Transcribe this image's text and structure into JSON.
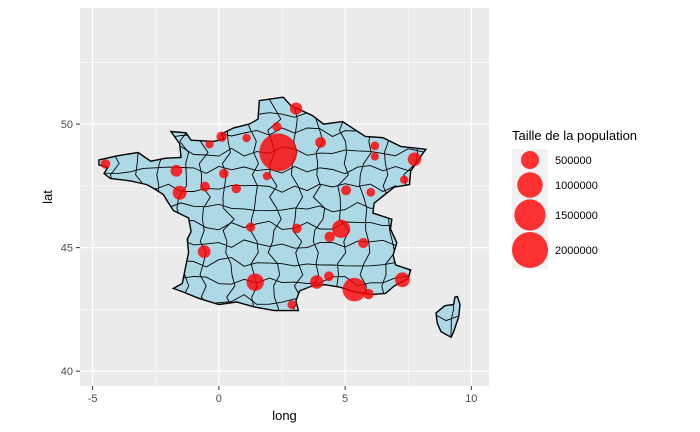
{
  "chart_data": {
    "type": "scatter",
    "xlabel": "long",
    "ylabel": "lat",
    "xlim": [
      -5.5,
      10.7
    ],
    "ylim": [
      39.4,
      54.7
    ],
    "x_ticks": [
      -5,
      0,
      5,
      10
    ],
    "y_ticks": [
      40,
      45,
      50
    ],
    "grid": true,
    "legend": {
      "title": "Taille de la population",
      "position": "right",
      "entries": [
        {
          "label": "500000",
          "value": 500000
        },
        {
          "label": "1000000",
          "value": 1000000
        },
        {
          "label": "1500000",
          "value": 1500000
        },
        {
          "label": "2000000",
          "value": 2000000
        }
      ]
    },
    "colors": {
      "panel": "#ebebeb",
      "grid": "#ffffff",
      "land": "#add8e6",
      "border": "#000000",
      "point": "#ff0000"
    },
    "points": [
      {
        "long": 2.35,
        "lat": 48.86,
        "pop": 2200000
      },
      {
        "long": 5.37,
        "lat": 43.3,
        "pop": 860000
      },
      {
        "long": 4.84,
        "lat": 45.76,
        "pop": 510000
      },
      {
        "long": 1.44,
        "lat": 43.6,
        "pop": 470000
      },
      {
        "long": 7.27,
        "lat": 43.7,
        "pop": 340000
      },
      {
        "long": -1.55,
        "lat": 47.22,
        "pop": 300000
      },
      {
        "long": 7.75,
        "lat": 48.58,
        "pop": 280000
      },
      {
        "long": 3.88,
        "lat": 43.61,
        "pop": 280000
      },
      {
        "long": -0.58,
        "lat": 44.84,
        "pop": 250000
      },
      {
        "long": 3.06,
        "lat": 50.63,
        "pop": 230000
      },
      {
        "long": -1.68,
        "lat": 48.11,
        "pop": 215000
      },
      {
        "long": 4.03,
        "lat": 49.26,
        "pop": 180000
      },
      {
        "long": 0.11,
        "lat": 49.49,
        "pop": 170000
      },
      {
        "long": 4.39,
        "lat": 45.44,
        "pop": 170000
      },
      {
        "long": 5.93,
        "lat": 43.12,
        "pop": 165000
      },
      {
        "long": 5.72,
        "lat": 45.19,
        "pop": 158000
      },
      {
        "long": 5.04,
        "lat": 47.32,
        "pop": 155000
      },
      {
        "long": -0.55,
        "lat": 47.47,
        "pop": 152000
      },
      {
        "long": 4.36,
        "lat": 43.84,
        "pop": 150000
      },
      {
        "long": 3.09,
        "lat": 45.78,
        "pop": 143000
      },
      {
        "long": 0.2,
        "lat": 48.0,
        "pop": 143000
      },
      {
        "long": 2.3,
        "lat": 49.89,
        "pop": 133000
      },
      {
        "long": 1.1,
        "lat": 49.44,
        "pop": 111000
      },
      {
        "long": 0.69,
        "lat": 47.39,
        "pop": 136000
      },
      {
        "long": 1.26,
        "lat": 45.83,
        "pop": 132000
      },
      {
        "long": -4.49,
        "lat": 48.39,
        "pop": 140000
      },
      {
        "long": 6.02,
        "lat": 47.24,
        "pop": 117000
      },
      {
        "long": 1.91,
        "lat": 47.9,
        "pop": 114000
      },
      {
        "long": 6.18,
        "lat": 49.12,
        "pop": 117000
      },
      {
        "long": 6.18,
        "lat": 48.69,
        "pop": 105000
      },
      {
        "long": 2.89,
        "lat": 42.69,
        "pop": 120000
      },
      {
        "long": 7.34,
        "lat": 47.75,
        "pop": 110000
      },
      {
        "long": -0.37,
        "lat": 49.18,
        "pop": 105000
      },
      {
        "long": 0.87,
        "lat": 49.35,
        "pop": 0
      }
    ]
  }
}
